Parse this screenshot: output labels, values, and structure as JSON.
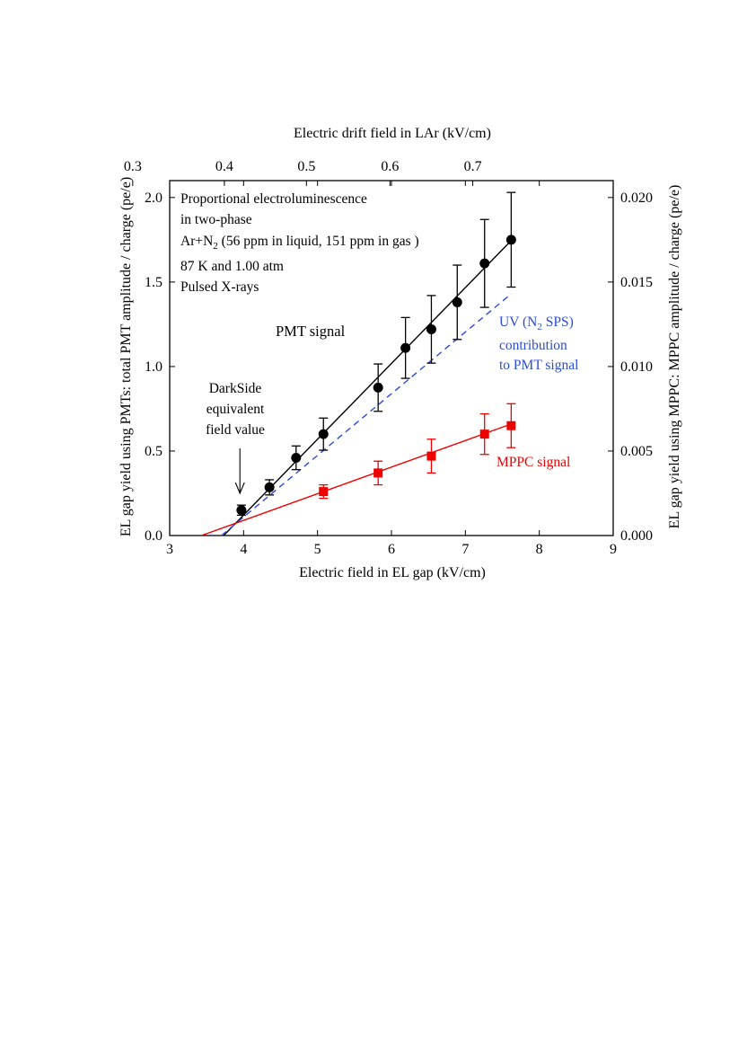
{
  "chart_data": {
    "type": "scatter",
    "xlabel": "Electric field in EL gap (kV/cm)",
    "ylabel_left": "EL gap yield using PMTs: total PMT amplitude / charge (pe/e)",
    "ylabel_right": "EL gap yield using MPPC: MPPC amplitude / charge (pe/e)",
    "xlabel_top": "Electric drift field in LAr (kV/cm)",
    "xlim": [
      3,
      9
    ],
    "ylim_left": [
      0,
      2.1
    ],
    "ylim_right": [
      0,
      0.021
    ],
    "x_ticks": [
      "3",
      "4",
      "5",
      "6",
      "7",
      "8",
      "9"
    ],
    "y_left_ticks": [
      "0.0",
      "0.5",
      "1.0",
      "1.5",
      "2.0"
    ],
    "y_right_ticks": [
      "0.000",
      "0.005",
      "0.010",
      "0.015",
      "0.020"
    ],
    "top_axis": {
      "map_to_bottom": [
        [
          0.3,
          2.5
        ],
        [
          0.4,
          3.74
        ],
        [
          0.5,
          4.85
        ],
        [
          0.6,
          5.98
        ],
        [
          0.7,
          7.1
        ]
      ],
      "ticks": [
        "0.3",
        "0.4",
        "0.5",
        "0.6",
        "0.7"
      ]
    },
    "series": [
      {
        "name": "PMT signal",
        "axis": "left",
        "color": "#000000",
        "marker": "circle",
        "x": [
          3.97,
          4.35,
          4.71,
          5.08,
          5.82,
          6.19,
          6.54,
          6.89,
          7.26,
          7.62
        ],
        "y": [
          0.15,
          0.285,
          0.46,
          0.6,
          0.875,
          1.11,
          1.22,
          1.38,
          1.61,
          1.75
        ],
        "yerr": [
          0.03,
          0.045,
          0.07,
          0.095,
          0.14,
          0.18,
          0.2,
          0.22,
          0.26,
          0.28
        ]
      },
      {
        "name": "MPPC signal",
        "axis": "right",
        "color": "#ee0000",
        "marker": "square",
        "x": [
          5.08,
          5.82,
          6.54,
          7.26,
          7.62
        ],
        "y": [
          0.0026,
          0.0037,
          0.0047,
          0.006,
          0.0065
        ],
        "yerr": [
          0.0004,
          0.0007,
          0.001,
          0.0012,
          0.0013
        ]
      }
    ],
    "lines": [
      {
        "series": "PMT signal",
        "style": "solid",
        "color": "#000000",
        "axis": "left",
        "x": [
          3.73,
          7.62
        ],
        "y": [
          0.0,
          1.745
        ]
      },
      {
        "series": "UV (N2 SPS) contribution to PMT signal",
        "style": "dashed",
        "color": "#2b4bd8",
        "axis": "left",
        "x": [
          3.7,
          7.62
        ],
        "y": [
          0.0,
          1.43
        ]
      },
      {
        "series": "MPPC signal",
        "style": "solid",
        "color": "#ee0000",
        "axis": "right",
        "x": [
          3.43,
          7.62
        ],
        "y": [
          0.0,
          0.0066
        ]
      }
    ],
    "annotations": {
      "info_line1": "Proportional electroluminescence",
      "info_line2": "in two-phase",
      "info_line3_pre": "Ar+N",
      "info_line3_sub": "2",
      "info_line3_post": " (56 ppm in liquid, 151 ppm in gas )",
      "info_line4": "87 K and 1.00 atm",
      "info_line5": "Pulsed X-rays",
      "pmt_label": "PMT signal",
      "uv_line1_pre": "UV (N",
      "uv_line1_sub": "2",
      "uv_line1_post": " SPS)",
      "uv_line2": "contribution",
      "uv_line3": "to PMT signal",
      "mppc_label": "MPPC signal",
      "ds_line1": "DarkSide",
      "ds_line2": "equivalent",
      "ds_line3": "field value",
      "arrow_x": 3.95
    },
    "grid": false
  }
}
